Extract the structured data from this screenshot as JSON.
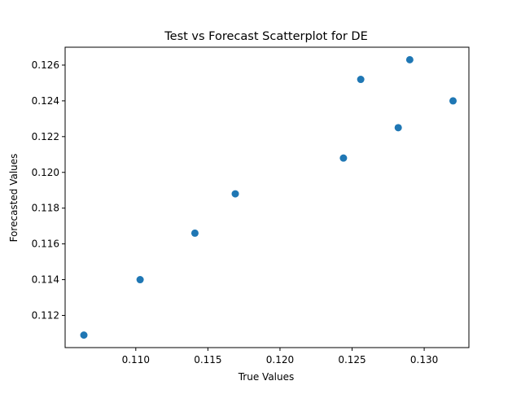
{
  "chart_data": {
    "type": "scatter",
    "title": "Test vs Forecast Scatterplot for DE",
    "xlabel": "True Values",
    "ylabel": "Forecasted Values",
    "xlim": [
      0.1051,
      0.1331
    ],
    "ylim": [
      0.1102,
      0.127
    ],
    "xticks": [
      0.11,
      0.115,
      0.12,
      0.125,
      0.13
    ],
    "xtick_labels": [
      "0.110",
      "0.115",
      "0.120",
      "0.125",
      "0.130"
    ],
    "yticks": [
      0.112,
      0.114,
      0.116,
      0.118,
      0.12,
      0.122,
      0.124,
      0.126
    ],
    "ytick_labels": [
      "0.112",
      "0.114",
      "0.116",
      "0.118",
      "0.120",
      "0.122",
      "0.124",
      "0.126"
    ],
    "grid": false,
    "marker_color": "#1f77b4",
    "points": [
      {
        "x": 0.1064,
        "y": 0.1109
      },
      {
        "x": 0.1103,
        "y": 0.114
      },
      {
        "x": 0.1141,
        "y": 0.1166
      },
      {
        "x": 0.1169,
        "y": 0.1188
      },
      {
        "x": 0.1244,
        "y": 0.1208
      },
      {
        "x": 0.1256,
        "y": 0.1252
      },
      {
        "x": 0.1282,
        "y": 0.1225
      },
      {
        "x": 0.129,
        "y": 0.1263
      },
      {
        "x": 0.132,
        "y": 0.124
      }
    ]
  }
}
